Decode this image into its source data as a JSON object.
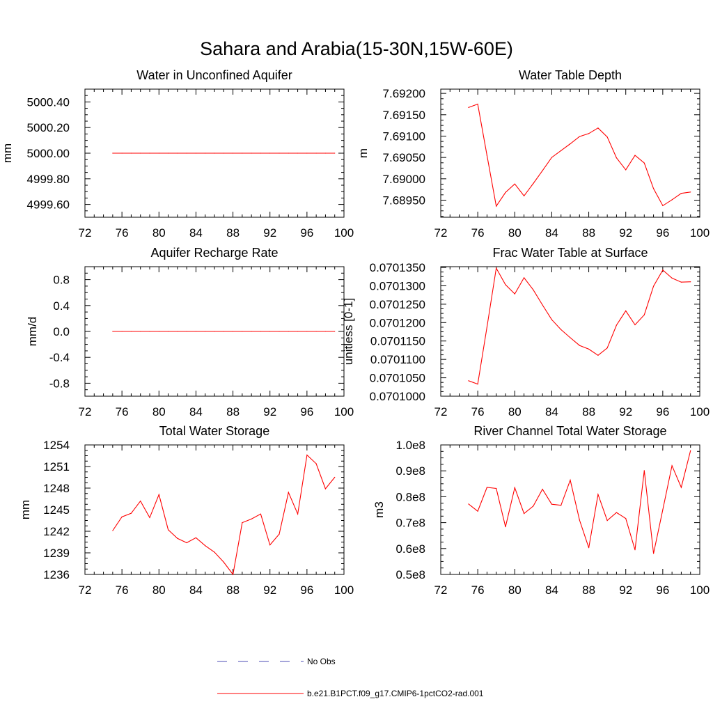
{
  "page_title": "Sahara and Arabia(15-30N,15W-60E)",
  "colors": {
    "model_line": "#ff0000",
    "obs_line": "#4b4bb4",
    "axis": "#000000"
  },
  "legend": {
    "entries": [
      {
        "label": "No Obs",
        "style": "dashed",
        "color": "#4b4bb4"
      },
      {
        "label": "b.e21.B1PCT.f09_g17.CMIP6-1pctCO2-rad.001",
        "style": "solid",
        "color": "#ff0000"
      }
    ]
  },
  "chart_data": [
    {
      "type": "line",
      "title": "Water in Unconfined Aquifer",
      "xlabel": "",
      "ylabel": "mm",
      "xlim": [
        72,
        100
      ],
      "ylim": [
        4999.5,
        5000.5
      ],
      "xticks": [
        72,
        76,
        80,
        84,
        88,
        92,
        96,
        100
      ],
      "xtick_labels": [
        "72",
        "76",
        "80",
        "84",
        "88",
        "92",
        "96",
        "100"
      ],
      "yticks": [
        4999.6,
        4999.8,
        5000.0,
        5000.2,
        5000.4
      ],
      "ytick_labels": [
        "4999.60",
        "4999.80",
        "5000.00",
        "5000.20",
        "5000.40"
      ],
      "series": [
        {
          "x": [
            75,
            76,
            77,
            78,
            79,
            80,
            81,
            82,
            83,
            84,
            85,
            86,
            87,
            88,
            89,
            90,
            91,
            92,
            93,
            94,
            95,
            96,
            97,
            98,
            99
          ],
          "y": [
            5000,
            5000,
            5000,
            5000,
            5000,
            5000,
            5000,
            5000,
            5000,
            5000,
            5000,
            5000,
            5000,
            5000,
            5000,
            5000,
            5000,
            5000,
            5000,
            5000,
            5000,
            5000,
            5000,
            5000,
            5000
          ]
        }
      ]
    },
    {
      "type": "line",
      "title": "Water Table Depth",
      "xlabel": "",
      "ylabel": "m",
      "xlim": [
        72,
        100
      ],
      "ylim": [
        7.6891,
        7.6921
      ],
      "xticks": [
        72,
        76,
        80,
        84,
        88,
        92,
        96,
        100
      ],
      "xtick_labels": [
        "72",
        "76",
        "80",
        "84",
        "88",
        "92",
        "96",
        "100"
      ],
      "yticks": [
        7.6895,
        7.69,
        7.6905,
        7.691,
        7.6915,
        7.692
      ],
      "ytick_labels": [
        "7.68950",
        "7.69000",
        "7.69050",
        "7.69100",
        "7.69150",
        "7.69200"
      ],
      "series": [
        {
          "x": [
            75,
            76,
            77,
            78,
            79,
            80,
            81,
            82,
            83,
            84,
            85,
            86,
            87,
            88,
            89,
            90,
            91,
            92,
            93,
            94,
            95,
            96,
            97,
            98,
            99
          ],
          "y": [
            7.69167,
            7.69175,
            7.69055,
            7.68936,
            7.68968,
            7.68988,
            7.6896,
            7.68989,
            7.69019,
            7.6905,
            7.69066,
            7.69082,
            7.69099,
            7.69106,
            7.69119,
            7.69098,
            7.69049,
            7.69021,
            7.69055,
            7.69037,
            7.68977,
            7.68937,
            7.68951,
            7.68966,
            7.68969
          ]
        }
      ]
    },
    {
      "type": "line",
      "title": "Aquifer Recharge Rate",
      "xlabel": "",
      "ylabel": "mm/d",
      "xlim": [
        72,
        100
      ],
      "ylim": [
        -1.0,
        1.0
      ],
      "xticks": [
        72,
        76,
        80,
        84,
        88,
        92,
        96,
        100
      ],
      "xtick_labels": [
        "72",
        "76",
        "80",
        "84",
        "88",
        "92",
        "96",
        "100"
      ],
      "yticks": [
        -0.8,
        -0.4,
        0.0,
        0.4,
        0.8
      ],
      "ytick_labels": [
        "-0.8",
        "-0.4",
        "0.0",
        "0.4",
        "0.8"
      ],
      "series": [
        {
          "x": [
            75,
            76,
            77,
            78,
            79,
            80,
            81,
            82,
            83,
            84,
            85,
            86,
            87,
            88,
            89,
            90,
            91,
            92,
            93,
            94,
            95,
            96,
            97,
            98,
            99
          ],
          "y": [
            0,
            0,
            0,
            0,
            0,
            0,
            0,
            0,
            0,
            0,
            0,
            0,
            0,
            0,
            0,
            0,
            0,
            0,
            0,
            0,
            0,
            0,
            0,
            0,
            0
          ]
        }
      ]
    },
    {
      "type": "line",
      "title": "Frac Water Table at Surface",
      "xlabel": "",
      "ylabel": "unitless [0-1]",
      "xlim": [
        72,
        100
      ],
      "ylim": [
        0.0701,
        0.0701352
      ],
      "xticks": [
        72,
        76,
        80,
        84,
        88,
        92,
        96,
        100
      ],
      "xtick_labels": [
        "72",
        "76",
        "80",
        "84",
        "88",
        "92",
        "96",
        "100"
      ],
      "yticks": [
        0.0701,
        0.070105,
        0.07011,
        0.070115,
        0.07012,
        0.070125,
        0.07013,
        0.070135
      ],
      "ytick_labels": [
        "0.0701000",
        "0.0701050",
        "0.0701100",
        "0.0701150",
        "0.0701200",
        "0.0701250",
        "0.0701300",
        "0.0701350"
      ],
      "series": [
        {
          "x": [
            75,
            76,
            77,
            78,
            79,
            80,
            81,
            82,
            83,
            84,
            85,
            86,
            87,
            88,
            89,
            90,
            91,
            92,
            93,
            94,
            95,
            96,
            97,
            98,
            99
          ],
          "y": [
            0.0701042,
            0.0701033,
            0.0701188,
            0.0701348,
            0.0701303,
            0.0701278,
            0.0701322,
            0.0701289,
            0.0701248,
            0.0701208,
            0.0701181,
            0.0701159,
            0.0701138,
            0.0701128,
            0.0701111,
            0.0701131,
            0.0701193,
            0.0701232,
            0.0701194,
            0.0701221,
            0.0701299,
            0.0701343,
            0.0701321,
            0.070131,
            0.0701311
          ]
        }
      ]
    },
    {
      "type": "line",
      "title": "Total Water Storage",
      "xlabel": "",
      "ylabel": "mm",
      "xlim": [
        72,
        100
      ],
      "ylim": [
        1236,
        1254
      ],
      "xticks": [
        72,
        76,
        80,
        84,
        88,
        92,
        96,
        100
      ],
      "xtick_labels": [
        "72",
        "76",
        "80",
        "84",
        "88",
        "92",
        "96",
        "100"
      ],
      "yticks": [
        1236,
        1239,
        1242,
        1245,
        1248,
        1251,
        1254
      ],
      "ytick_labels": [
        "1236",
        "1239",
        "1242",
        "1245",
        "1248",
        "1251",
        "1254"
      ],
      "series": [
        {
          "x": [
            75,
            76,
            77,
            78,
            79,
            80,
            81,
            82,
            83,
            84,
            85,
            86,
            87,
            88,
            89,
            90,
            91,
            92,
            93,
            94,
            95,
            96,
            97,
            98,
            99
          ],
          "y": [
            1242.1,
            1244.0,
            1244.5,
            1246.2,
            1243.9,
            1247.1,
            1242.2,
            1241.0,
            1240.4,
            1241.1,
            1240.0,
            1239.1,
            1237.7,
            1236.0,
            1243.2,
            1243.7,
            1244.4,
            1240.1,
            1241.6,
            1247.4,
            1244.4,
            1252.6,
            1251.4,
            1247.9,
            1249.5
          ]
        }
      ]
    },
    {
      "type": "line",
      "title": "River Channel Total Water Storage",
      "xlabel": "",
      "ylabel": "m3",
      "xlim": [
        72,
        100
      ],
      "ylim": [
        50000000,
        100000000
      ],
      "xticks": [
        72,
        76,
        80,
        84,
        88,
        92,
        96,
        100
      ],
      "xtick_labels": [
        "72",
        "76",
        "80",
        "84",
        "88",
        "92",
        "96",
        "100"
      ],
      "yticks": [
        50000000,
        60000000,
        70000000,
        80000000,
        90000000,
        100000000
      ],
      "ytick_labels": [
        "0.5e8",
        "0.6e8",
        "0.7e8",
        "0.8e8",
        "0.9e8",
        "1.0e8"
      ],
      "series": [
        {
          "x": [
            75,
            76,
            77,
            78,
            79,
            80,
            81,
            82,
            83,
            84,
            85,
            86,
            87,
            88,
            89,
            90,
            91,
            92,
            93,
            94,
            95,
            96,
            97,
            98,
            99
          ],
          "y": [
            77200000,
            74400000,
            83600000,
            83200000,
            68400000,
            83500000,
            73500000,
            76400000,
            82900000,
            77100000,
            76700000,
            86400000,
            71000000,
            60300000,
            80900000,
            70800000,
            73900000,
            71600000,
            59500000,
            90100000,
            58100000,
            75000000,
            92000000,
            83600000,
            97800000
          ]
        }
      ]
    }
  ]
}
